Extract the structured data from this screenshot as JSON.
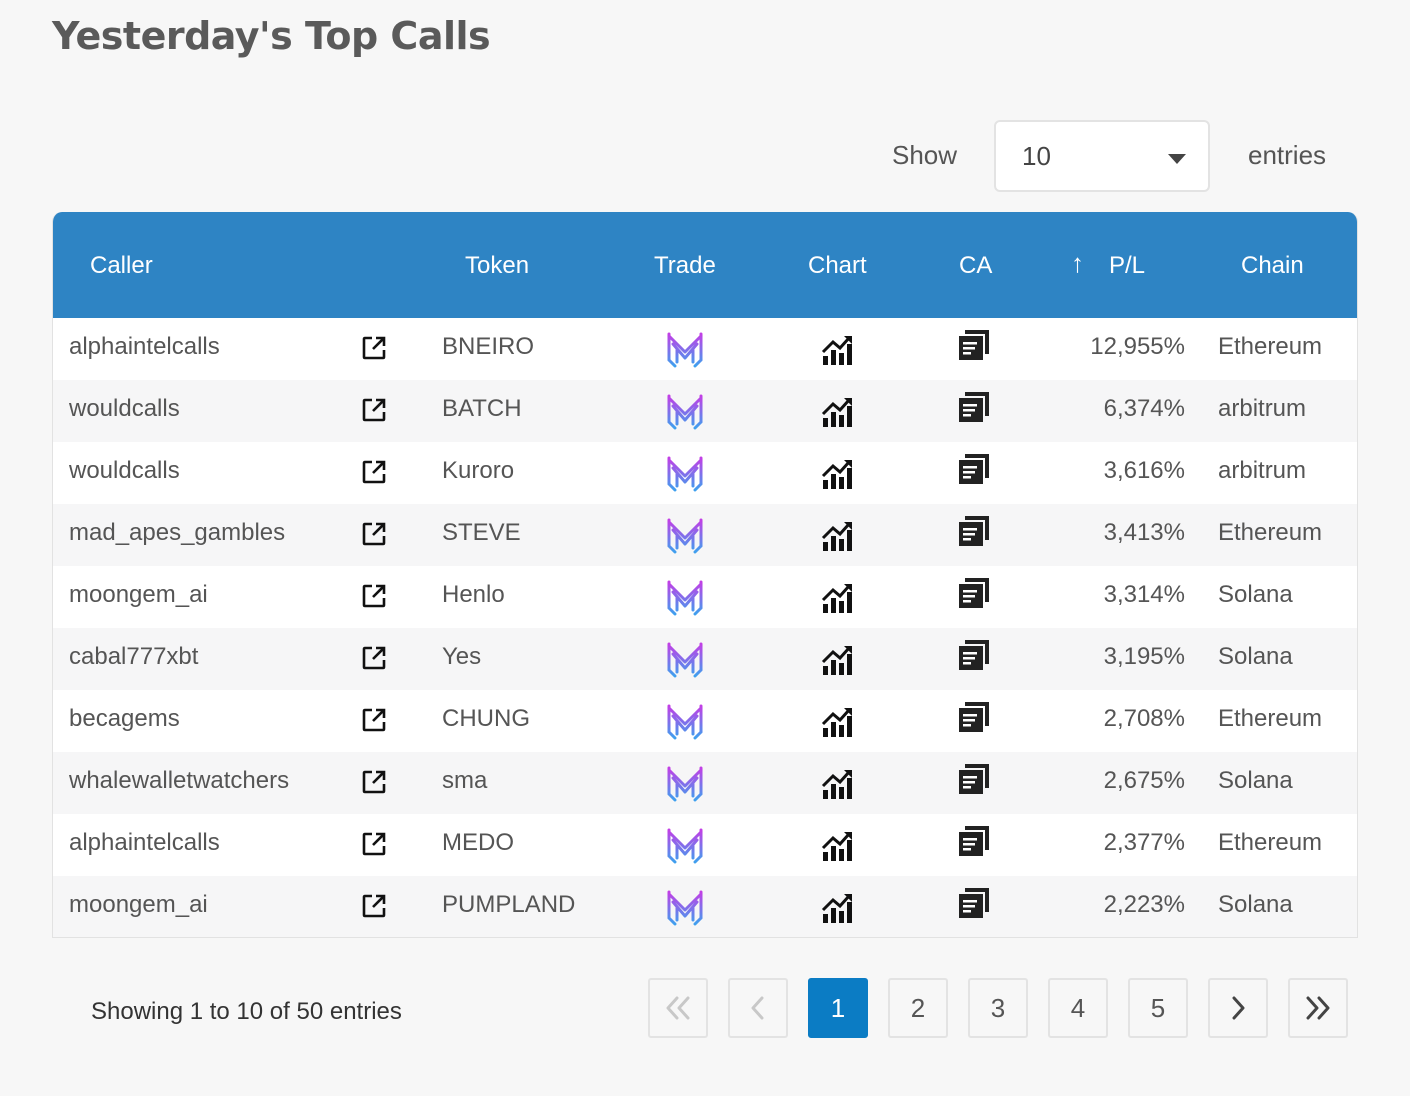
{
  "page": {
    "title": "Yesterday's Top Calls"
  },
  "length_menu": {
    "show_label": "Show",
    "value": "10",
    "entries_label": "entries"
  },
  "table": {
    "headers": {
      "caller": "Caller",
      "token": "Token",
      "trade": "Trade",
      "chart": "Chart",
      "ca": "CA",
      "pl_sort": "↑",
      "pl": "P/L",
      "chain": "Chain"
    },
    "rows": [
      {
        "caller": "alphaintelcalls",
        "token": "BNEIRO",
        "pl": "12,955%",
        "chain": "Ethereum"
      },
      {
        "caller": "wouldcalls",
        "token": "BATCH",
        "pl": "6,374%",
        "chain": "arbitrum"
      },
      {
        "caller": "wouldcalls",
        "token": "Kuroro",
        "pl": "3,616%",
        "chain": "arbitrum"
      },
      {
        "caller": "mad_apes_gambles",
        "token": "STEVE",
        "pl": "3,413%",
        "chain": "Ethereum"
      },
      {
        "caller": "moongem_ai",
        "token": "Henlo",
        "pl": "3,314%",
        "chain": "Solana"
      },
      {
        "caller": "cabal777xbt",
        "token": "Yes",
        "pl": "3,195%",
        "chain": "Solana"
      },
      {
        "caller": "becagems",
        "token": "CHUNG",
        "pl": "2,708%",
        "chain": "Ethereum"
      },
      {
        "caller": "whalewalletwatchers",
        "token": "sma",
        "pl": "2,675%",
        "chain": "Solana"
      },
      {
        "caller": "alphaintelcalls",
        "token": "MEDO",
        "pl": "2,377%",
        "chain": "Ethereum"
      },
      {
        "caller": "moongem_ai",
        "token": "PUMPLAND",
        "pl": "2,223%",
        "chain": "Solana"
      }
    ]
  },
  "footer": {
    "info": "Showing 1 to 10 of 50 entries"
  },
  "pagination": {
    "pages": [
      "1",
      "2",
      "3",
      "4",
      "5"
    ],
    "current": "1",
    "first_icon": "double-chevron-left-icon",
    "prev_icon": "chevron-left-icon",
    "next_icon": "chevron-right-icon",
    "last_icon": "double-chevron-right-icon"
  },
  "colors": {
    "header_bg": "#2e84c4",
    "active_page": "#0b7cc4",
    "trade_icon_top": "#c23fe6",
    "trade_icon_bottom": "#3fa0ee"
  }
}
